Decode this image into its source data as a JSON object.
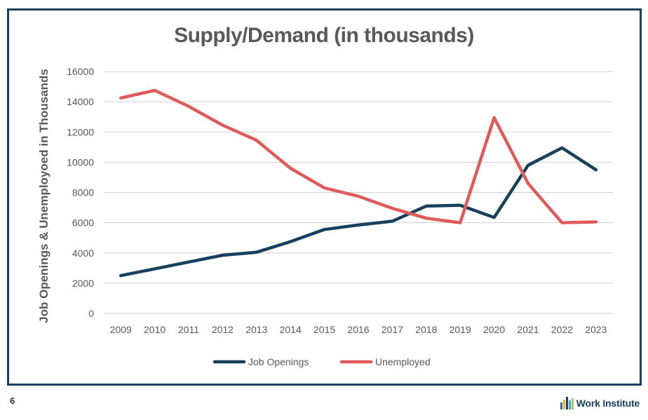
{
  "chart_data": {
    "type": "line",
    "title": "Supply/Demand (in thousands)",
    "xlabel": "",
    "ylabel": "Job Openings & Unemployoed in Thousands",
    "categories": [
      "2009",
      "2010",
      "2011",
      "2012",
      "2013",
      "2014",
      "2015",
      "2016",
      "2017",
      "2018",
      "2019",
      "2020",
      "2021",
      "2022",
      "2023"
    ],
    "ylim": [
      0,
      16000
    ],
    "yticks": [
      0,
      2000,
      4000,
      6000,
      8000,
      10000,
      12000,
      14000,
      16000
    ],
    "grid": true,
    "legend_position": "bottom",
    "series": [
      {
        "name": "Job Openings",
        "color": "#17405f",
        "values": [
          2500,
          2950,
          3400,
          3850,
          4050,
          4750,
          5550,
          5850,
          6100,
          7100,
          7150,
          6350,
          9800,
          10950,
          9500
        ]
      },
      {
        "name": "Unemployed",
        "color": "#e05a5a",
        "values": [
          14250,
          14750,
          13700,
          12450,
          11450,
          9600,
          8300,
          7750,
          6950,
          6300,
          6000,
          12950,
          8600,
          6000,
          6050
        ]
      }
    ]
  },
  "footer": {
    "page_number": "6",
    "brand": "Work Institute",
    "brand_logo_colors": [
      "#2a6fa8",
      "#f2b134",
      "#17405f",
      "#4aa3d8",
      "#9ccc65"
    ]
  }
}
